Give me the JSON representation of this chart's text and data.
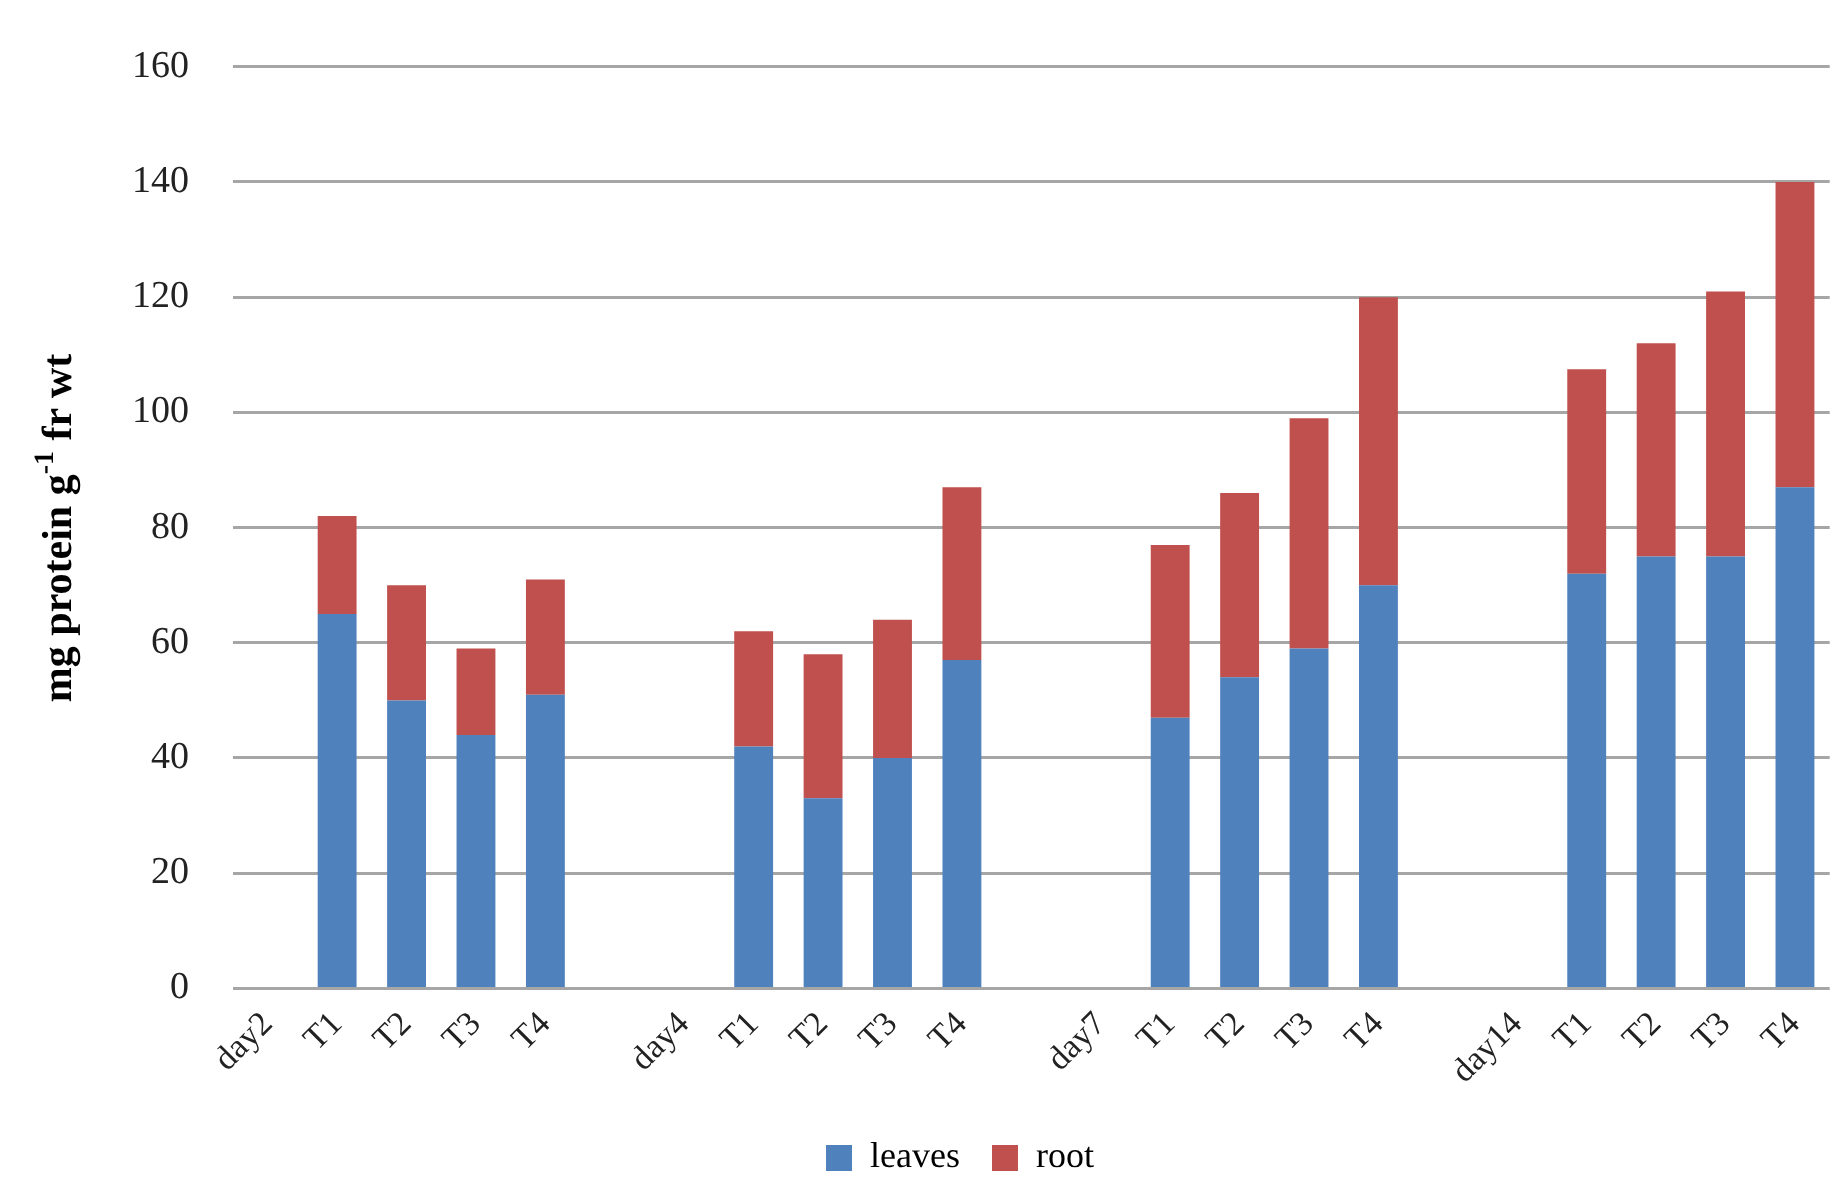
{
  "chart_data": {
    "type": "bar",
    "ylabel": "mg protein g$^{-1}$ fr wt",
    "categories": [
      "day2",
      "T1",
      "T2",
      "T3",
      "T4",
      null,
      "day4",
      "T1",
      "T2",
      "T3",
      "T4",
      null,
      "day7",
      "T1",
      "T2",
      "T3",
      "T4",
      null,
      "day14",
      "T1",
      "T2",
      "T3",
      "T4"
    ],
    "series": [
      {
        "name": "leaves",
        "color": "#4f81bd",
        "values": [
          null,
          65,
          50,
          44,
          51,
          null,
          null,
          42,
          33,
          40,
          57,
          null,
          null,
          47,
          54,
          59,
          70,
          null,
          null,
          72,
          75,
          75,
          87
        ]
      },
      {
        "name": "root",
        "color": "#c0504d",
        "values": [
          null,
          17,
          20,
          15,
          20,
          null,
          null,
          20,
          25,
          24,
          30,
          null,
          null,
          30,
          32,
          40,
          50,
          null,
          null,
          35.5,
          37,
          46,
          53
        ]
      }
    ],
    "stacked": true,
    "ylim": [
      0,
      160
    ],
    "yticks": [
      0,
      20,
      40,
      60,
      80,
      100,
      120,
      140,
      160
    ],
    "grid": "y",
    "legend": "bottom"
  }
}
